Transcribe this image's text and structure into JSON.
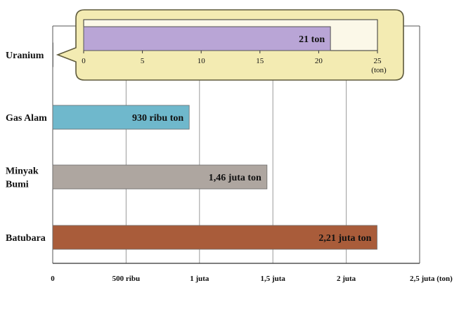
{
  "chart_data": [
    {
      "type": "bar",
      "orientation": "horizontal",
      "categories": [
        "Uranium",
        "Gas Alam",
        "Minyak Bumi",
        "Batubara"
      ],
      "category_lines": [
        [
          "Uranium"
        ],
        [
          "Gas Alam"
        ],
        [
          "Minyak",
          "Bumi"
        ],
        [
          "Batubara"
        ]
      ],
      "values": [
        21,
        930000,
        1460000,
        2210000
      ],
      "value_labels": [
        "21 ton",
        "930 ribu ton",
        "1,46 juta ton",
        "2,21 juta ton"
      ],
      "colors": [
        "#b9a5d6",
        "#6fb8cc",
        "#aea6a0",
        "#a95c3a"
      ],
      "xlim": [
        0,
        2500000
      ],
      "xticks": [
        0,
        500000,
        1000000,
        1500000,
        2000000,
        2500000
      ],
      "xtick_labels": [
        "0",
        "500 ribu",
        "1 juta",
        "1,5 juta",
        "2 juta",
        "2,5 juta (ton)"
      ],
      "grid": "vertical",
      "title": "",
      "xlabel": "",
      "ylabel": ""
    },
    {
      "type": "bar",
      "orientation": "horizontal",
      "role": "inset callout for Uranium",
      "categories": [
        "Uranium"
      ],
      "values": [
        21
      ],
      "value_labels": [
        "21 ton"
      ],
      "colors": [
        "#b9a5d6"
      ],
      "callout_fill": "#f3ebb2",
      "xlim": [
        0,
        25
      ],
      "xticks": [
        0,
        5,
        10,
        15,
        20,
        25
      ],
      "xtick_labels": [
        "0",
        "5",
        "10",
        "15",
        "20",
        "25"
      ],
      "unit_label": "(ton)"
    }
  ]
}
